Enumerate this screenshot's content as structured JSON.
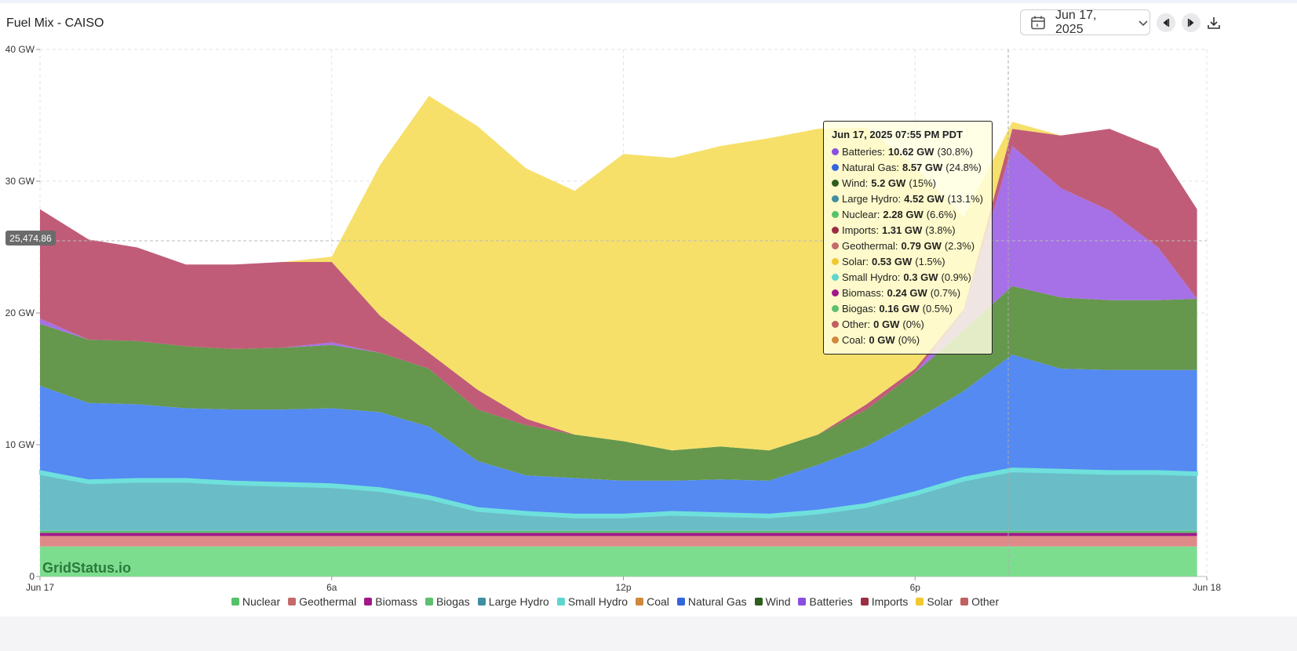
{
  "header": {
    "title": "Fuel Mix - CAISO",
    "date_label": "Jun 17, 2025",
    "calendar_icon": "calendar-icon",
    "dropdown_icon": "chevron-down-icon",
    "prev_icon": "caret-left-icon",
    "next_icon": "caret-right-icon",
    "download_icon": "download-icon"
  },
  "watermark": "GridStatus.io",
  "crosshair_value": "25,474.86",
  "tooltip": {
    "title": "Jun 17, 2025 07:55 PM PDT",
    "rows": [
      {
        "name": "Batteries",
        "value": "10.62 GW",
        "pct": "(30.8%)",
        "color": "#8a4fe0"
      },
      {
        "name": "Natural Gas",
        "value": "8.57 GW",
        "pct": "(24.8%)",
        "color": "#3366dd"
      },
      {
        "name": "Wind",
        "value": "5.2 GW",
        "pct": "(15%)",
        "color": "#2e5e1e"
      },
      {
        "name": "Large Hydro",
        "value": "4.52 GW",
        "pct": "(13.1%)",
        "color": "#3f8fa0"
      },
      {
        "name": "Nuclear",
        "value": "2.28 GW",
        "pct": "(6.6%)",
        "color": "#55c26a"
      },
      {
        "name": "Imports",
        "value": "1.31 GW",
        "pct": "(3.8%)",
        "color": "#9a2e45"
      },
      {
        "name": "Geothermal",
        "value": "0.79 GW",
        "pct": "(2.3%)",
        "color": "#c56a6a"
      },
      {
        "name": "Solar",
        "value": "0.53 GW",
        "pct": "(1.5%)",
        "color": "#f0c830"
      },
      {
        "name": "Small Hydro",
        "value": "0.3 GW",
        "pct": "(0.9%)",
        "color": "#5fd6cc"
      },
      {
        "name": "Biomass",
        "value": "0.24 GW",
        "pct": "(0.7%)",
        "color": "#a0188a"
      },
      {
        "name": "Biogas",
        "value": "0.16 GW",
        "pct": "(0.5%)",
        "color": "#5cc070"
      },
      {
        "name": "Other",
        "value": "0 GW",
        "pct": "(0%)",
        "color": "#c06060"
      },
      {
        "name": "Coal",
        "value": "0 GW",
        "pct": "(0%)",
        "color": "#d0883a"
      }
    ]
  },
  "chart_data": {
    "type": "area",
    "stacked": true,
    "title": "Fuel Mix - CAISO",
    "xlabel": "",
    "ylabel": "",
    "x": [
      0,
      1,
      2,
      3,
      4,
      5,
      6,
      7,
      8,
      9,
      10,
      11,
      12,
      13,
      14,
      15,
      16,
      17,
      18,
      19,
      20,
      21,
      22,
      23,
      24
    ],
    "x_ticks": [
      {
        "x": 0,
        "label": "Jun 17"
      },
      {
        "x": 6,
        "label": "6a"
      },
      {
        "x": 12,
        "label": "12p"
      },
      {
        "x": 18,
        "label": "6p"
      },
      {
        "x": 24,
        "label": "Jun 18"
      }
    ],
    "y_ticks": [
      {
        "value": 0,
        "label": "0"
      },
      {
        "value": 10,
        "label": "10 GW"
      },
      {
        "value": 20,
        "label": "20 GW"
      },
      {
        "value": 30,
        "label": "30 GW"
      },
      {
        "value": 40,
        "label": "40 GW"
      }
    ],
    "ylim": [
      0,
      40
    ],
    "xlim": [
      0,
      24
    ],
    "data_end_x": 23.8,
    "grid": true,
    "legend_position": "bottom",
    "series": [
      {
        "name": "Nuclear",
        "color": "#7ddd8e",
        "legend_color": "#55c26a",
        "values": [
          2.28,
          2.28,
          2.28,
          2.28,
          2.28,
          2.28,
          2.28,
          2.28,
          2.28,
          2.28,
          2.28,
          2.28,
          2.28,
          2.28,
          2.28,
          2.28,
          2.28,
          2.28,
          2.28,
          2.28,
          2.28,
          2.28,
          2.28,
          2.28,
          2.28
        ]
      },
      {
        "name": "Geothermal",
        "color": "#dd8a88",
        "legend_color": "#c56a6a",
        "values": [
          0.79,
          0.79,
          0.79,
          0.79,
          0.79,
          0.79,
          0.79,
          0.79,
          0.79,
          0.79,
          0.79,
          0.79,
          0.79,
          0.79,
          0.79,
          0.79,
          0.79,
          0.79,
          0.79,
          0.79,
          0.79,
          0.79,
          0.79,
          0.79,
          0.79
        ]
      },
      {
        "name": "Biomass",
        "color": "#a0188a",
        "legend_color": "#a0188a",
        "values": [
          0.24,
          0.24,
          0.24,
          0.24,
          0.24,
          0.24,
          0.24,
          0.24,
          0.24,
          0.24,
          0.24,
          0.24,
          0.24,
          0.24,
          0.24,
          0.24,
          0.24,
          0.24,
          0.24,
          0.24,
          0.24,
          0.24,
          0.24,
          0.24,
          0.24
        ]
      },
      {
        "name": "Biogas",
        "color": "#5cc070",
        "legend_color": "#5cc070",
        "values": [
          0.16,
          0.16,
          0.16,
          0.16,
          0.16,
          0.16,
          0.16,
          0.16,
          0.16,
          0.16,
          0.16,
          0.16,
          0.16,
          0.16,
          0.16,
          0.16,
          0.16,
          0.16,
          0.16,
          0.16,
          0.16,
          0.16,
          0.16,
          0.16,
          0.16
        ]
      },
      {
        "name": "Large Hydro",
        "color": "#6abcc6",
        "legend_color": "#3f8fa0",
        "values": [
          4.3,
          3.6,
          3.7,
          3.7,
          3.5,
          3.4,
          3.3,
          3.0,
          2.4,
          1.5,
          1.2,
          1.0,
          1.0,
          1.2,
          1.1,
          1.0,
          1.3,
          1.8,
          2.7,
          3.8,
          4.5,
          4.4,
          4.3,
          4.3,
          4.2
        ]
      },
      {
        "name": "Small Hydro",
        "color": "#6fe0dc",
        "legend_color": "#5fd6cc",
        "values": [
          0.3,
          0.3,
          0.3,
          0.3,
          0.3,
          0.3,
          0.3,
          0.3,
          0.3,
          0.3,
          0.3,
          0.3,
          0.3,
          0.3,
          0.3,
          0.3,
          0.3,
          0.3,
          0.3,
          0.3,
          0.3,
          0.3,
          0.3,
          0.3,
          0.3
        ]
      },
      {
        "name": "Coal",
        "color": "#d0883a",
        "legend_color": "#d0883a",
        "values": [
          0,
          0,
          0,
          0,
          0,
          0,
          0,
          0,
          0,
          0,
          0,
          0,
          0,
          0,
          0,
          0,
          0,
          0,
          0,
          0,
          0,
          0,
          0,
          0,
          0
        ]
      },
      {
        "name": "Natural Gas",
        "color": "#548af2",
        "legend_color": "#3366dd",
        "values": [
          6.4,
          5.8,
          5.6,
          5.3,
          5.4,
          5.5,
          5.7,
          5.7,
          5.2,
          3.5,
          2.7,
          2.7,
          2.5,
          2.3,
          2.5,
          2.5,
          3.4,
          4.3,
          5.4,
          6.5,
          8.57,
          7.6,
          7.6,
          7.6,
          7.7
        ]
      },
      {
        "name": "Wind",
        "color": "#65974d",
        "legend_color": "#2e5e1e",
        "values": [
          4.7,
          4.8,
          4.8,
          4.7,
          4.6,
          4.7,
          4.8,
          4.5,
          4.4,
          3.9,
          3.8,
          3.3,
          3.0,
          2.3,
          2.5,
          2.3,
          2.3,
          2.8,
          3.6,
          4.6,
          5.2,
          5.4,
          5.3,
          5.3,
          5.4
        ]
      },
      {
        "name": "Batteries",
        "color": "#a670e6",
        "legend_color": "#8a4fe0",
        "values": [
          0.4,
          0,
          0,
          0,
          0,
          0,
          0.2,
          0,
          0,
          0,
          0,
          0,
          0,
          0,
          0,
          0,
          0,
          0,
          0,
          1.4,
          10.62,
          8.3,
          6.8,
          4.0,
          0
        ]
      },
      {
        "name": "Imports",
        "color": "#c05c78",
        "legend_color": "#9a2e45",
        "values": [
          8.3,
          7.6,
          7.1,
          6.2,
          6.4,
          6.5,
          6.1,
          2.8,
          1.2,
          1.5,
          0.5,
          0,
          0,
          0,
          0,
          0,
          0,
          0.4,
          0.3,
          0.2,
          1.31,
          4.0,
          6.2,
          7.5,
          6.8
        ]
      },
      {
        "name": "Solar",
        "color": "#f6e06a",
        "legend_color": "#f0c830",
        "values": [
          0,
          0,
          0,
          0,
          0,
          0,
          0.4,
          11.5,
          19.5,
          20.0,
          19.0,
          18.5,
          21.8,
          22.2,
          22.8,
          23.7,
          23.2,
          21.0,
          15.3,
          7.0,
          0.53,
          0,
          0,
          0,
          0
        ]
      },
      {
        "name": "Other",
        "color": "#c06060",
        "legend_color": "#c06060",
        "values": [
          0,
          0,
          0,
          0,
          0,
          0,
          0,
          0,
          0,
          0,
          0,
          0,
          0,
          0,
          0,
          0,
          0,
          0,
          0,
          0,
          0,
          0,
          0,
          0,
          0
        ]
      }
    ]
  }
}
